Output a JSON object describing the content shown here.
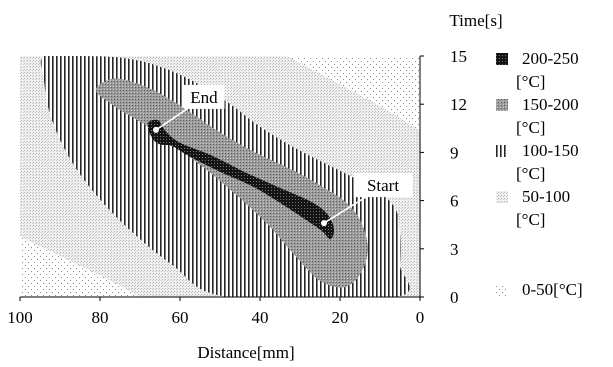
{
  "chart_data": {
    "type": "heatmap",
    "subtype": "filled contour",
    "xlabel": "Distance[mm]",
    "ylabel": "Time[s]",
    "x_ticks": [
      "100",
      "80",
      "60",
      "40",
      "20",
      "0"
    ],
    "y_ticks": [
      "0",
      "3",
      "6",
      "9",
      "12",
      "15"
    ],
    "xlim": [
      100,
      0
    ],
    "ylim": [
      0,
      15
    ],
    "x_reversed": true,
    "y_axis_side": "right",
    "grid": false,
    "legend_position": "right",
    "legend": [
      {
        "line1": "200-250",
        "line2": "[°C]",
        "range": [
          200,
          250
        ],
        "pattern": "dark-dots"
      },
      {
        "line1": "150-200",
        "line2": "[°C]",
        "range": [
          150,
          200
        ],
        "pattern": "grey-dots"
      },
      {
        "line1": "100-150",
        "line2": "[°C]",
        "range": [
          100,
          150
        ],
        "pattern": "vertical-stripes"
      },
      {
        "line1": "50-100",
        "line2": "[°C]",
        "range": [
          50,
          100
        ],
        "pattern": "light-dots"
      },
      {
        "line1": "0-50[°C]",
        "line2": "",
        "range": [
          0,
          50
        ],
        "pattern": "sparse-dots"
      }
    ],
    "annotations": [
      {
        "text": "End",
        "x": 66,
        "y": 10.4
      },
      {
        "text": "Start",
        "x": 24,
        "y": 4.6
      }
    ],
    "regions": [
      {
        "band": "100-150",
        "outline": [
          [
            94,
            15
          ],
          [
            84,
            15
          ],
          [
            75,
            14.9
          ],
          [
            67,
            14.5
          ],
          [
            58,
            13.6
          ],
          [
            48,
            12.1
          ],
          [
            40,
            10.6
          ],
          [
            30,
            9.1
          ],
          [
            18,
            7.6
          ],
          [
            10,
            6.5
          ],
          [
            6,
            5.4
          ],
          [
            5,
            4
          ],
          [
            5,
            2
          ],
          [
            6,
            0
          ],
          [
            48,
            0
          ],
          [
            62,
            2
          ],
          [
            76,
            5
          ],
          [
            86,
            8
          ],
          [
            92,
            11
          ],
          [
            94,
            13.5
          ]
        ]
      },
      {
        "band": "150-200",
        "outline": [
          [
            81,
            12.8
          ],
          [
            79,
            13.4
          ],
          [
            76,
            13.6
          ],
          [
            72,
            13.4
          ],
          [
            66,
            12.8
          ],
          [
            58,
            11.6
          ],
          [
            51,
            10.4
          ],
          [
            42,
            9.1
          ],
          [
            31,
            7.8
          ],
          [
            24,
            6.8
          ],
          [
            19,
            6
          ],
          [
            15,
            4.8
          ],
          [
            13,
            3
          ],
          [
            15,
            1.4
          ],
          [
            19,
            0.6
          ],
          [
            25,
            1
          ],
          [
            31,
            2.5
          ],
          [
            38,
            4.5
          ],
          [
            48,
            6.8
          ],
          [
            58,
            8.8
          ],
          [
            68,
            10.6
          ],
          [
            76,
            11.8
          ]
        ]
      },
      {
        "band": "200-250",
        "outline": [
          [
            68,
            10.8
          ],
          [
            65.5,
            11
          ],
          [
            63.5,
            10.3
          ],
          [
            60,
            9.6
          ],
          [
            52,
            8.8
          ],
          [
            44,
            7.8
          ],
          [
            36,
            6.9
          ],
          [
            27,
            5.9
          ],
          [
            23,
            5.1
          ],
          [
            21.5,
            4.2
          ],
          [
            22.5,
            3.6
          ],
          [
            25,
            4.2
          ],
          [
            34,
            5.7
          ],
          [
            42,
            6.9
          ],
          [
            50,
            7.8
          ],
          [
            58,
            8.8
          ],
          [
            62,
            9.4
          ],
          [
            65,
            9.5
          ],
          [
            67,
            9.9
          ]
        ]
      }
    ]
  }
}
